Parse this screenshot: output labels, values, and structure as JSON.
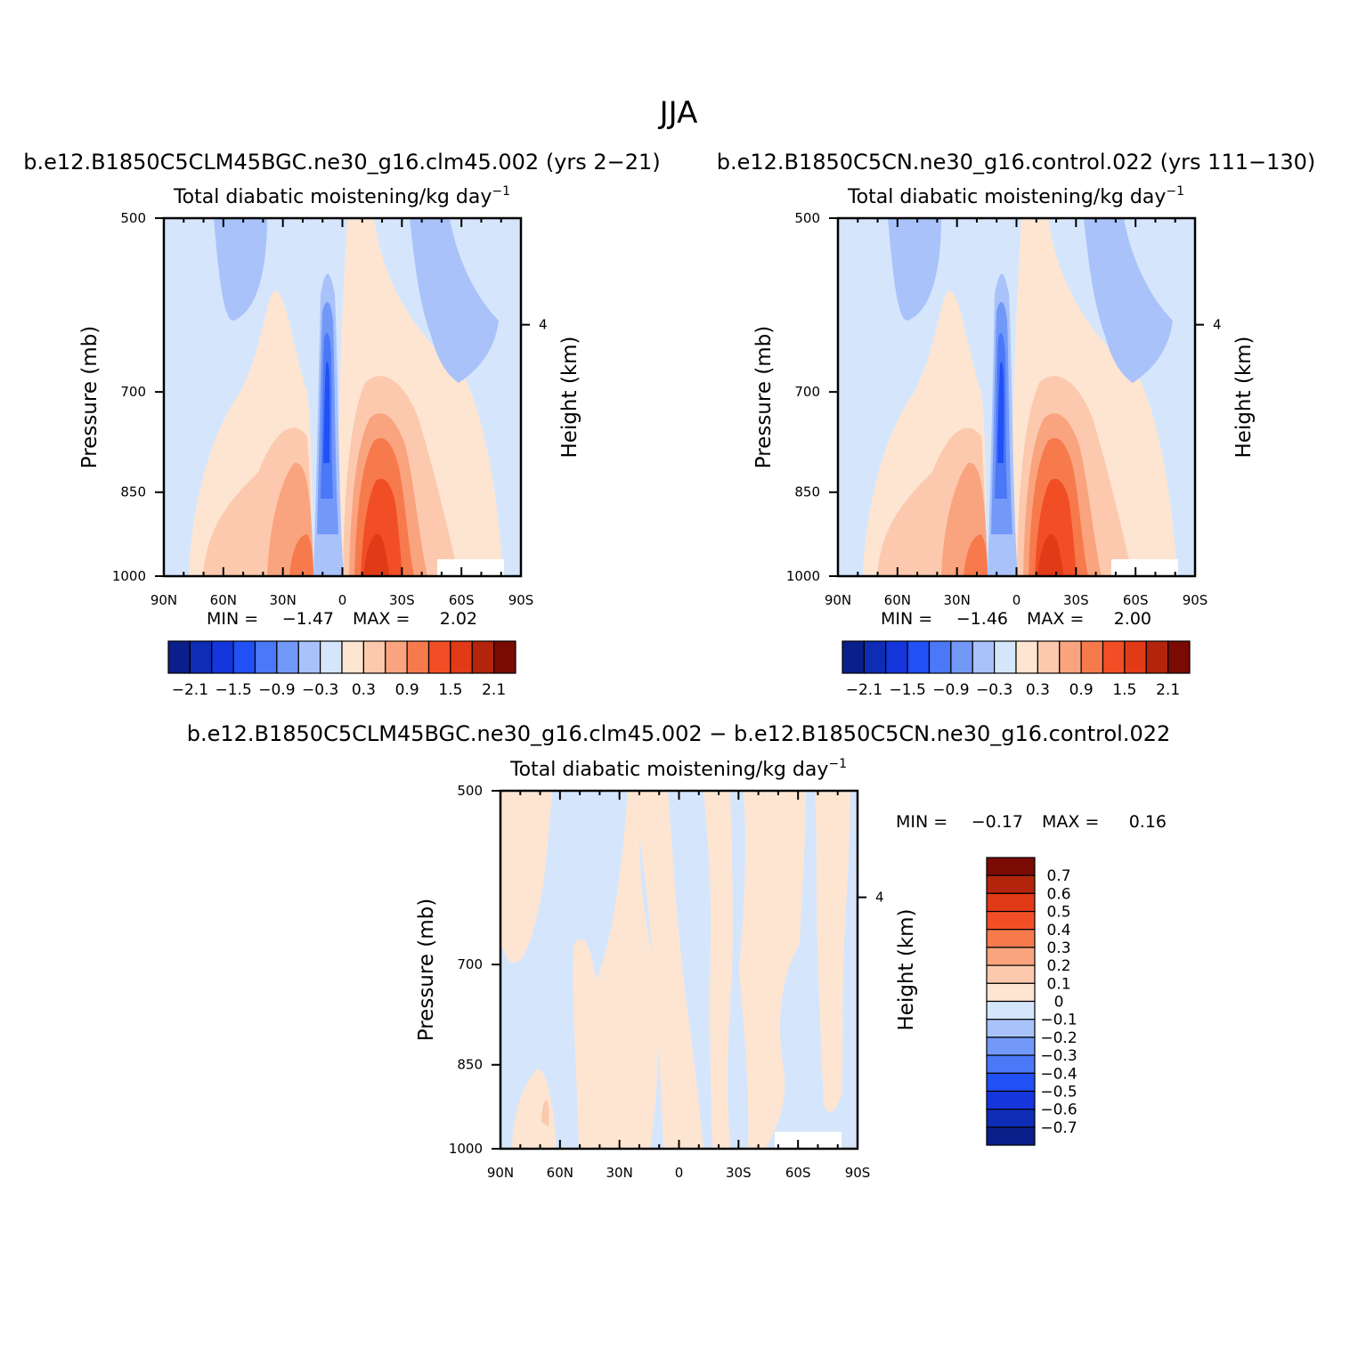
{
  "figure": {
    "title": "JJA",
    "variable_title": "Total diabatic moistening/kg day",
    "variable_exponent": "−1",
    "ylabel_left": "Pressure (mb)",
    "ylabel_right": "Height (km)",
    "pressure_ticks": [
      "500",
      "700",
      "850",
      "1000"
    ],
    "height_ticks": [
      "4"
    ],
    "lat_ticks": [
      "90N",
      "60N",
      "30N",
      "0",
      "30S",
      "60S",
      "90S"
    ]
  },
  "panels": [
    {
      "case": "b.e12.B1850C5CLM45BGC.ne30_g16.clm45.002 (yrs 2−21)",
      "min_label": "MIN =",
      "min_value": "−1.47",
      "max_label": "MAX =",
      "max_value": "2.02"
    },
    {
      "case": "b.e12.B1850C5CN.ne30_g16.control.022 (yrs 111−130)",
      "min_label": "MIN =",
      "min_value": "−1.46",
      "max_label": "MAX =",
      "max_value": "2.00"
    },
    {
      "case": "b.e12.B1850C5CLM45BGC.ne30_g16.clm45.002 − b.e12.B1850C5CN.ne30_g16.control.022",
      "min_label": "MIN =",
      "min_value": "−0.17",
      "max_label": "MAX =",
      "max_value": "0.16"
    }
  ],
  "colorbar_abs": {
    "colors": [
      "#0a1f8a",
      "#0e2cb4",
      "#1536dd",
      "#2150f5",
      "#4a78f7",
      "#7298f8",
      "#a9c2fa",
      "#d5e6fc",
      "#fde5d2",
      "#fcc9ae",
      "#f9a47f",
      "#f77a4d",
      "#f24e26",
      "#e13a17",
      "#b2240c",
      "#7a0a04"
    ],
    "labels": [
      "−2.1",
      "−1.5",
      "−0.9",
      "−0.3",
      "0.3",
      "0.9",
      "1.5",
      "2.1"
    ]
  },
  "colorbar_diff": {
    "colors": [
      "#7a0a04",
      "#b2240c",
      "#e13a17",
      "#f24e26",
      "#f77a4d",
      "#f9a47f",
      "#fcc9ae",
      "#fde5d2",
      "#d5e6fc",
      "#a9c2fa",
      "#7298f8",
      "#4a78f7",
      "#2150f5",
      "#1536dd",
      "#0e2cb4",
      "#0a1f8a"
    ],
    "labels": [
      "0.7",
      "0.6",
      "0.5",
      "0.4",
      "0.3",
      "0.2",
      "0.1",
      "0",
      "−0.1",
      "−0.2",
      "−0.3",
      "−0.4",
      "−0.5",
      "−0.6",
      "−0.7"
    ]
  },
  "chart_data": [
    {
      "type": "heatmap",
      "title": "Total diabatic moistening/kg day−1",
      "xlabel": "",
      "ylabel": "Pressure (mb)",
      "x_ticks": [
        "90N",
        "60N",
        "30N",
        "0",
        "30S",
        "60S",
        "90S"
      ],
      "xlim": [
        90,
        -90
      ],
      "y_ticks": [
        500,
        700,
        850,
        1000
      ],
      "ylim": [
        1000,
        500
      ],
      "right_axis": {
        "label": "Height (km)",
        "ticks": [
          4
        ]
      },
      "min": -1.47,
      "max": 2.02,
      "contour_levels": [
        -2.1,
        -1.8,
        -1.5,
        -1.2,
        -0.9,
        -0.6,
        -0.3,
        0,
        0.3,
        0.6,
        0.9,
        1.2,
        1.5,
        1.8,
        2.1
      ]
    },
    {
      "type": "heatmap",
      "title": "Total diabatic moistening/kg day−1",
      "xlabel": "",
      "ylabel": "Pressure (mb)",
      "x_ticks": [
        "90N",
        "60N",
        "30N",
        "0",
        "30S",
        "60S",
        "90S"
      ],
      "xlim": [
        90,
        -90
      ],
      "y_ticks": [
        500,
        700,
        850,
        1000
      ],
      "ylim": [
        1000,
        500
      ],
      "right_axis": {
        "label": "Height (km)",
        "ticks": [
          4
        ]
      },
      "min": -1.46,
      "max": 2.0,
      "contour_levels": [
        -2.1,
        -1.8,
        -1.5,
        -1.2,
        -0.9,
        -0.6,
        -0.3,
        0,
        0.3,
        0.6,
        0.9,
        1.2,
        1.5,
        1.8,
        2.1
      ]
    },
    {
      "type": "heatmap",
      "title": "Total diabatic moistening/kg day−1",
      "xlabel": "",
      "ylabel": "Pressure (mb)",
      "x_ticks": [
        "90N",
        "60N",
        "30N",
        "0",
        "30S",
        "60S",
        "90S"
      ],
      "xlim": [
        90,
        -90
      ],
      "y_ticks": [
        500,
        700,
        850,
        1000
      ],
      "ylim": [
        1000,
        500
      ],
      "right_axis": {
        "label": "Height (km)",
        "ticks": [
          4
        ]
      },
      "min": -0.17,
      "max": 0.16,
      "contour_levels": [
        -0.7,
        -0.6,
        -0.5,
        -0.4,
        -0.3,
        -0.2,
        -0.1,
        0,
        0.1,
        0.2,
        0.3,
        0.4,
        0.5,
        0.6,
        0.7
      ]
    }
  ]
}
